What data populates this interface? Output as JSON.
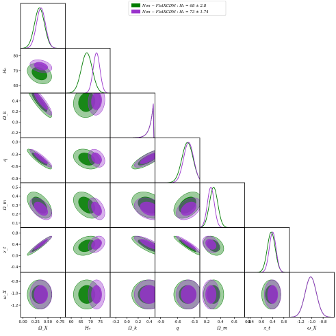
{
  "chart_data": {
    "type": "corner",
    "title": "",
    "legend": {
      "placement": "top-center",
      "entries": [
        {
          "label": "Non − FlatXCDM : H₀ = 68 ± 2.8",
          "color": "#007a00"
        },
        {
          "label": "Non − FlatXCDM : H₀ = 73 ± 1.74",
          "color": "#9932cc"
        }
      ]
    },
    "parameters": [
      {
        "label": "Ω_X",
        "ticks": [
          "0.00",
          "0.25",
          "0.50",
          "0.75"
        ],
        "tick_values": [
          0.0,
          0.25,
          0.5,
          0.75
        ],
        "range": [
          -0.05,
          0.85
        ]
      },
      {
        "label": "H₀",
        "ticks": [
          "60",
          "65",
          "70",
          "75"
        ],
        "tick_values": [
          60,
          65,
          70,
          75
        ],
        "range": [
          57,
          80
        ]
      },
      {
        "label": "Ω_k",
        "ticks": [
          "-0.2",
          "0.0",
          "0.2",
          "0.4"
        ],
        "tick_values": [
          -0.2,
          0.0,
          0.2,
          0.4
        ],
        "range": [
          -0.3,
          0.5
        ]
      },
      {
        "label": "q",
        "ticks": [
          "-0.9",
          "-0.6",
          "-0.3"
        ],
        "tick_values": [
          -0.9,
          -0.6,
          -0.3
        ],
        "range": [
          -1.0,
          -0.2
        ]
      },
      {
        "label": "Ω_m",
        "ticks": [
          "0.2",
          "0.4",
          "0.6",
          "0.8"
        ],
        "tick_values": [
          0.2,
          0.4,
          0.6,
          0.8
        ],
        "range": [
          0.1,
          0.75
        ]
      },
      {
        "label": "z_t",
        "ticks": [
          "-0.4",
          "0.0",
          "0.4",
          "0.8"
        ],
        "tick_values": [
          -0.4,
          0.0,
          0.4,
          0.8
        ],
        "range": [
          -0.6,
          1.0
        ]
      },
      {
        "label": "ω_X",
        "ticks": [
          "-1.2",
          "-1.0",
          "-0.8"
        ],
        "tick_values": [
          -1.2,
          -1.0,
          -0.8
        ],
        "range": [
          -1.4,
          -0.6
        ]
      }
    ],
    "y_tick_overrides": {
      "1": [
        "60",
        "70",
        "80"
      ],
      "2": [
        "-0.2",
        "0.0",
        "0.2",
        "0.4"
      ],
      "3": [
        "-0.9",
        "-0.6",
        "-0.3",
        "0.0"
      ],
      "4": [
        "0.1",
        "0.2",
        "0.3",
        "0.4",
        "0.5"
      ],
      "5": [
        "-0.4",
        "0.0",
        "0.4",
        "0.8"
      ],
      "6": [
        "-1.2",
        "-1.0",
        "-0.8"
      ]
    },
    "y_tick_override_values": {
      "1": [
        60,
        70,
        80
      ],
      "2": [
        -0.2,
        0.0,
        0.2,
        0.4
      ],
      "3": [
        -0.9,
        -0.6,
        -0.3,
        0.0
      ],
      "4": [
        0.1,
        0.2,
        0.3,
        0.4,
        0.5
      ],
      "5": [
        -0.4,
        0.0,
        0.4,
        0.8
      ],
      "6": [
        -1.2,
        -1.0,
        -0.8
      ]
    },
    "y_ranges": {
      "1": [
        55,
        85
      ],
      "2": [
        -0.3,
        0.55
      ],
      "3": [
        -1.0,
        0.1
      ],
      "4": [
        0.05,
        0.55
      ],
      "5": [
        -0.6,
        1.0
      ],
      "6": [
        -1.4,
        -0.65
      ]
    },
    "series": [
      {
        "name": "Non − FlatXCDM : H₀ = 68 ± 2.8",
        "color": "#007a00",
        "mean": [
          0.33,
          68.0,
          0.38,
          -0.42,
          0.3,
          0.35,
          -1.02
        ],
        "sigma": [
          0.1,
          2.8,
          0.12,
          0.1,
          0.06,
          0.14,
          0.1
        ]
      },
      {
        "name": "Non − FlatXCDM : H₀ = 73 ± 1.74",
        "color": "#9932cc",
        "mean": [
          0.36,
          73.0,
          0.4,
          -0.4,
          0.26,
          0.4,
          -1.02
        ],
        "sigma": [
          0.09,
          1.74,
          0.11,
          0.09,
          0.05,
          0.12,
          0.1
        ]
      }
    ],
    "correlations": {
      "1-0": -0.3,
      "2-0": -0.9,
      "2-1": 0.1,
      "3-0": -0.9,
      "3-1": -0.3,
      "3-2": 0.8,
      "4-0": -0.5,
      "4-1": -0.4,
      "4-2": -0.3,
      "4-3": 0.4,
      "5-0": 0.95,
      "5-1": 0.3,
      "5-2": -0.8,
      "5-3": -0.95,
      "5-4": -0.3,
      "6-0": 0.0,
      "6-1": 0.0,
      "6-2": 0.0,
      "6-3": 0.0,
      "6-4": 0.0,
      "6-5": 0.0
    },
    "grid": false
  }
}
